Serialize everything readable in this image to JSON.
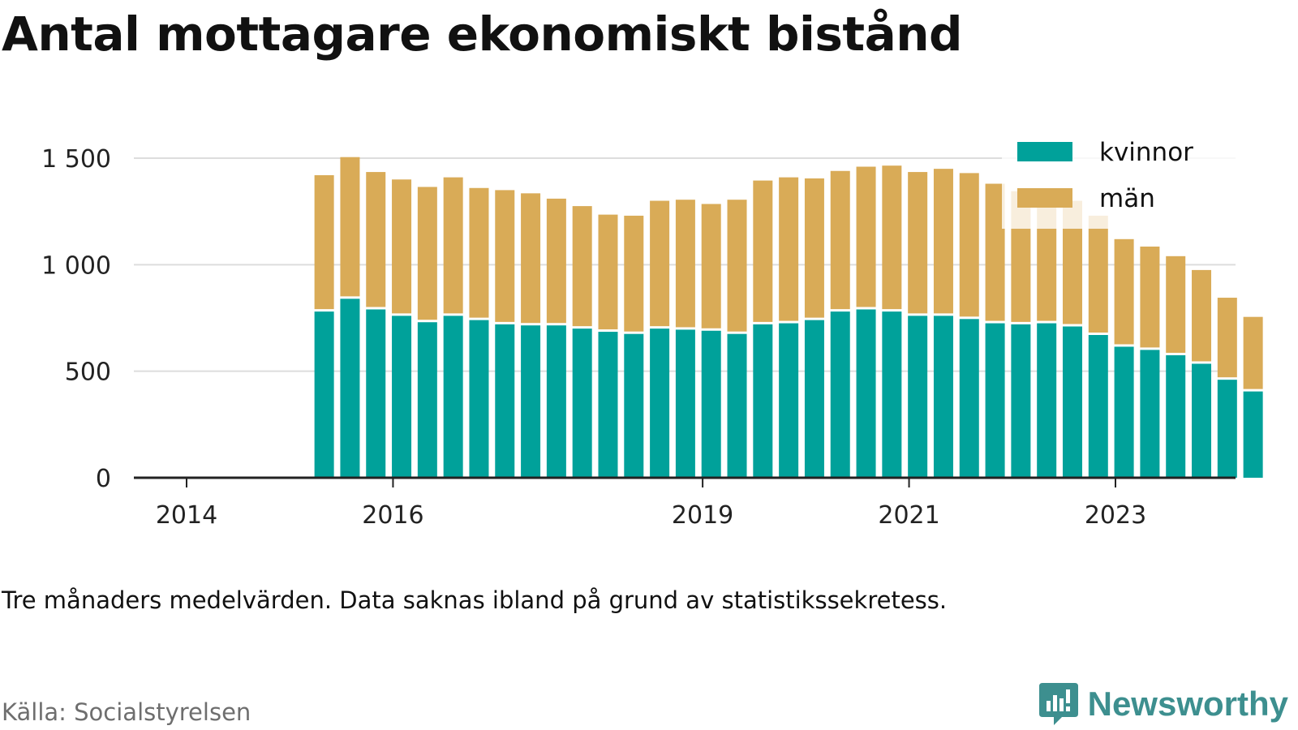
{
  "title": "Antal mottagare ekonomiskt bistånd",
  "note": "Tre månaders medelvärden. Data saknas ibland på grund av statistikssekretess.",
  "source": "Källa: Socialstyrelsen",
  "brand": {
    "name": "Newsworthy",
    "logo_icon": "bar-chart-speech-bubble-icon"
  },
  "colors": {
    "kvinnor": "#00a19a",
    "man": "#d9ab57",
    "axis": "#222222",
    "grid": "#dddddd"
  },
  "chart_data": {
    "type": "bar",
    "stacked": true,
    "title": "Antal mottagare ekonomiskt bistånd",
    "ylim": [
      0,
      1500
    ],
    "y_ticks": [
      {
        "value": 0,
        "label": "0"
      },
      {
        "value": 500,
        "label": "500"
      },
      {
        "value": 1000,
        "label": "1 000"
      },
      {
        "value": 1500,
        "label": "1 500"
      }
    ],
    "x_ticks": [
      "2014",
      "2016",
      "2019",
      "2021",
      "2023"
    ],
    "x_tick_years": [
      2014,
      2016,
      2019,
      2021,
      2023
    ],
    "legend_position": "top-right",
    "grid": true,
    "x": [
      "2015-05",
      "2015-08",
      "2015-11",
      "2016-02",
      "2016-05",
      "2016-08",
      "2016-11",
      "2017-02",
      "2017-05",
      "2017-08",
      "2017-11",
      "2018-02",
      "2018-05",
      "2018-08",
      "2018-11",
      "2019-02",
      "2019-05",
      "2019-08",
      "2019-11",
      "2020-02",
      "2020-05",
      "2020-08",
      "2020-11",
      "2021-02",
      "2021-05",
      "2021-08",
      "2021-11",
      "2022-02",
      "2022-05",
      "2022-08",
      "2022-11",
      "2023-02",
      "2023-05",
      "2023-08",
      "2023-11",
      "2024-02",
      "2024-05"
    ],
    "series": [
      {
        "name": "kvinnor",
        "values": [
          780,
          840,
          790,
          760,
          730,
          760,
          740,
          720,
          715,
          715,
          700,
          685,
          675,
          700,
          695,
          690,
          675,
          720,
          725,
          740,
          780,
          790,
          780,
          760,
          760,
          745,
          725,
          720,
          725,
          710,
          670,
          615,
          600,
          575,
          535,
          460,
          405
        ]
      },
      {
        "name": "män",
        "values": [
          640,
          665,
          645,
          640,
          635,
          650,
          620,
          630,
          620,
          595,
          575,
          550,
          555,
          600,
          610,
          595,
          630,
          675,
          685,
          665,
          660,
          670,
          685,
          675,
          690,
          685,
          655,
          625,
          630,
          590,
          560,
          505,
          485,
          465,
          440,
          385,
          350
        ]
      }
    ]
  }
}
